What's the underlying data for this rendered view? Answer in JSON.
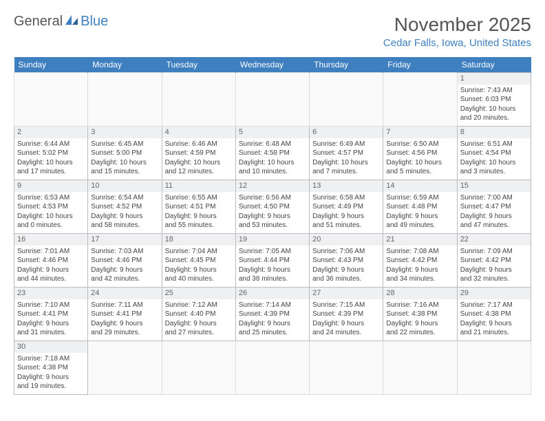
{
  "logo": {
    "part1": "General",
    "part2": "Blue"
  },
  "title": "November 2025",
  "location": "Cedar Falls, Iowa, United States",
  "colors": {
    "header_bg": "#3d7fbf",
    "header_text": "#ffffff",
    "accent": "#3d7fbf",
    "body_text": "#444444"
  },
  "days_of_week": [
    "Sunday",
    "Monday",
    "Tuesday",
    "Wednesday",
    "Thursday",
    "Friday",
    "Saturday"
  ],
  "weeks": [
    [
      null,
      null,
      null,
      null,
      null,
      null,
      {
        "day": "1",
        "sunrise": "Sunrise: 7:43 AM",
        "sunset": "Sunset: 6:03 PM",
        "daylight1": "Daylight: 10 hours",
        "daylight2": "and 20 minutes."
      }
    ],
    [
      {
        "day": "2",
        "sunrise": "Sunrise: 6:44 AM",
        "sunset": "Sunset: 5:02 PM",
        "daylight1": "Daylight: 10 hours",
        "daylight2": "and 17 minutes."
      },
      {
        "day": "3",
        "sunrise": "Sunrise: 6:45 AM",
        "sunset": "Sunset: 5:00 PM",
        "daylight1": "Daylight: 10 hours",
        "daylight2": "and 15 minutes."
      },
      {
        "day": "4",
        "sunrise": "Sunrise: 6:46 AM",
        "sunset": "Sunset: 4:59 PM",
        "daylight1": "Daylight: 10 hours",
        "daylight2": "and 12 minutes."
      },
      {
        "day": "5",
        "sunrise": "Sunrise: 6:48 AM",
        "sunset": "Sunset: 4:58 PM",
        "daylight1": "Daylight: 10 hours",
        "daylight2": "and 10 minutes."
      },
      {
        "day": "6",
        "sunrise": "Sunrise: 6:49 AM",
        "sunset": "Sunset: 4:57 PM",
        "daylight1": "Daylight: 10 hours",
        "daylight2": "and 7 minutes."
      },
      {
        "day": "7",
        "sunrise": "Sunrise: 6:50 AM",
        "sunset": "Sunset: 4:56 PM",
        "daylight1": "Daylight: 10 hours",
        "daylight2": "and 5 minutes."
      },
      {
        "day": "8",
        "sunrise": "Sunrise: 6:51 AM",
        "sunset": "Sunset: 4:54 PM",
        "daylight1": "Daylight: 10 hours",
        "daylight2": "and 3 minutes."
      }
    ],
    [
      {
        "day": "9",
        "sunrise": "Sunrise: 6:53 AM",
        "sunset": "Sunset: 4:53 PM",
        "daylight1": "Daylight: 10 hours",
        "daylight2": "and 0 minutes."
      },
      {
        "day": "10",
        "sunrise": "Sunrise: 6:54 AM",
        "sunset": "Sunset: 4:52 PM",
        "daylight1": "Daylight: 9 hours",
        "daylight2": "and 58 minutes."
      },
      {
        "day": "11",
        "sunrise": "Sunrise: 6:55 AM",
        "sunset": "Sunset: 4:51 PM",
        "daylight1": "Daylight: 9 hours",
        "daylight2": "and 55 minutes."
      },
      {
        "day": "12",
        "sunrise": "Sunrise: 6:56 AM",
        "sunset": "Sunset: 4:50 PM",
        "daylight1": "Daylight: 9 hours",
        "daylight2": "and 53 minutes."
      },
      {
        "day": "13",
        "sunrise": "Sunrise: 6:58 AM",
        "sunset": "Sunset: 4:49 PM",
        "daylight1": "Daylight: 9 hours",
        "daylight2": "and 51 minutes."
      },
      {
        "day": "14",
        "sunrise": "Sunrise: 6:59 AM",
        "sunset": "Sunset: 4:48 PM",
        "daylight1": "Daylight: 9 hours",
        "daylight2": "and 49 minutes."
      },
      {
        "day": "15",
        "sunrise": "Sunrise: 7:00 AM",
        "sunset": "Sunset: 4:47 PM",
        "daylight1": "Daylight: 9 hours",
        "daylight2": "and 47 minutes."
      }
    ],
    [
      {
        "day": "16",
        "sunrise": "Sunrise: 7:01 AM",
        "sunset": "Sunset: 4:46 PM",
        "daylight1": "Daylight: 9 hours",
        "daylight2": "and 44 minutes."
      },
      {
        "day": "17",
        "sunrise": "Sunrise: 7:03 AM",
        "sunset": "Sunset: 4:46 PM",
        "daylight1": "Daylight: 9 hours",
        "daylight2": "and 42 minutes."
      },
      {
        "day": "18",
        "sunrise": "Sunrise: 7:04 AM",
        "sunset": "Sunset: 4:45 PM",
        "daylight1": "Daylight: 9 hours",
        "daylight2": "and 40 minutes."
      },
      {
        "day": "19",
        "sunrise": "Sunrise: 7:05 AM",
        "sunset": "Sunset: 4:44 PM",
        "daylight1": "Daylight: 9 hours",
        "daylight2": "and 38 minutes."
      },
      {
        "day": "20",
        "sunrise": "Sunrise: 7:06 AM",
        "sunset": "Sunset: 4:43 PM",
        "daylight1": "Daylight: 9 hours",
        "daylight2": "and 36 minutes."
      },
      {
        "day": "21",
        "sunrise": "Sunrise: 7:08 AM",
        "sunset": "Sunset: 4:42 PM",
        "daylight1": "Daylight: 9 hours",
        "daylight2": "and 34 minutes."
      },
      {
        "day": "22",
        "sunrise": "Sunrise: 7:09 AM",
        "sunset": "Sunset: 4:42 PM",
        "daylight1": "Daylight: 9 hours",
        "daylight2": "and 32 minutes."
      }
    ],
    [
      {
        "day": "23",
        "sunrise": "Sunrise: 7:10 AM",
        "sunset": "Sunset: 4:41 PM",
        "daylight1": "Daylight: 9 hours",
        "daylight2": "and 31 minutes."
      },
      {
        "day": "24",
        "sunrise": "Sunrise: 7:11 AM",
        "sunset": "Sunset: 4:41 PM",
        "daylight1": "Daylight: 9 hours",
        "daylight2": "and 29 minutes."
      },
      {
        "day": "25",
        "sunrise": "Sunrise: 7:12 AM",
        "sunset": "Sunset: 4:40 PM",
        "daylight1": "Daylight: 9 hours",
        "daylight2": "and 27 minutes."
      },
      {
        "day": "26",
        "sunrise": "Sunrise: 7:14 AM",
        "sunset": "Sunset: 4:39 PM",
        "daylight1": "Daylight: 9 hours",
        "daylight2": "and 25 minutes."
      },
      {
        "day": "27",
        "sunrise": "Sunrise: 7:15 AM",
        "sunset": "Sunset: 4:39 PM",
        "daylight1": "Daylight: 9 hours",
        "daylight2": "and 24 minutes."
      },
      {
        "day": "28",
        "sunrise": "Sunrise: 7:16 AM",
        "sunset": "Sunset: 4:38 PM",
        "daylight1": "Daylight: 9 hours",
        "daylight2": "and 22 minutes."
      },
      {
        "day": "29",
        "sunrise": "Sunrise: 7:17 AM",
        "sunset": "Sunset: 4:38 PM",
        "daylight1": "Daylight: 9 hours",
        "daylight2": "and 21 minutes."
      }
    ],
    [
      {
        "day": "30",
        "sunrise": "Sunrise: 7:18 AM",
        "sunset": "Sunset: 4:38 PM",
        "daylight1": "Daylight: 9 hours",
        "daylight2": "and 19 minutes."
      },
      null,
      null,
      null,
      null,
      null,
      null
    ]
  ]
}
